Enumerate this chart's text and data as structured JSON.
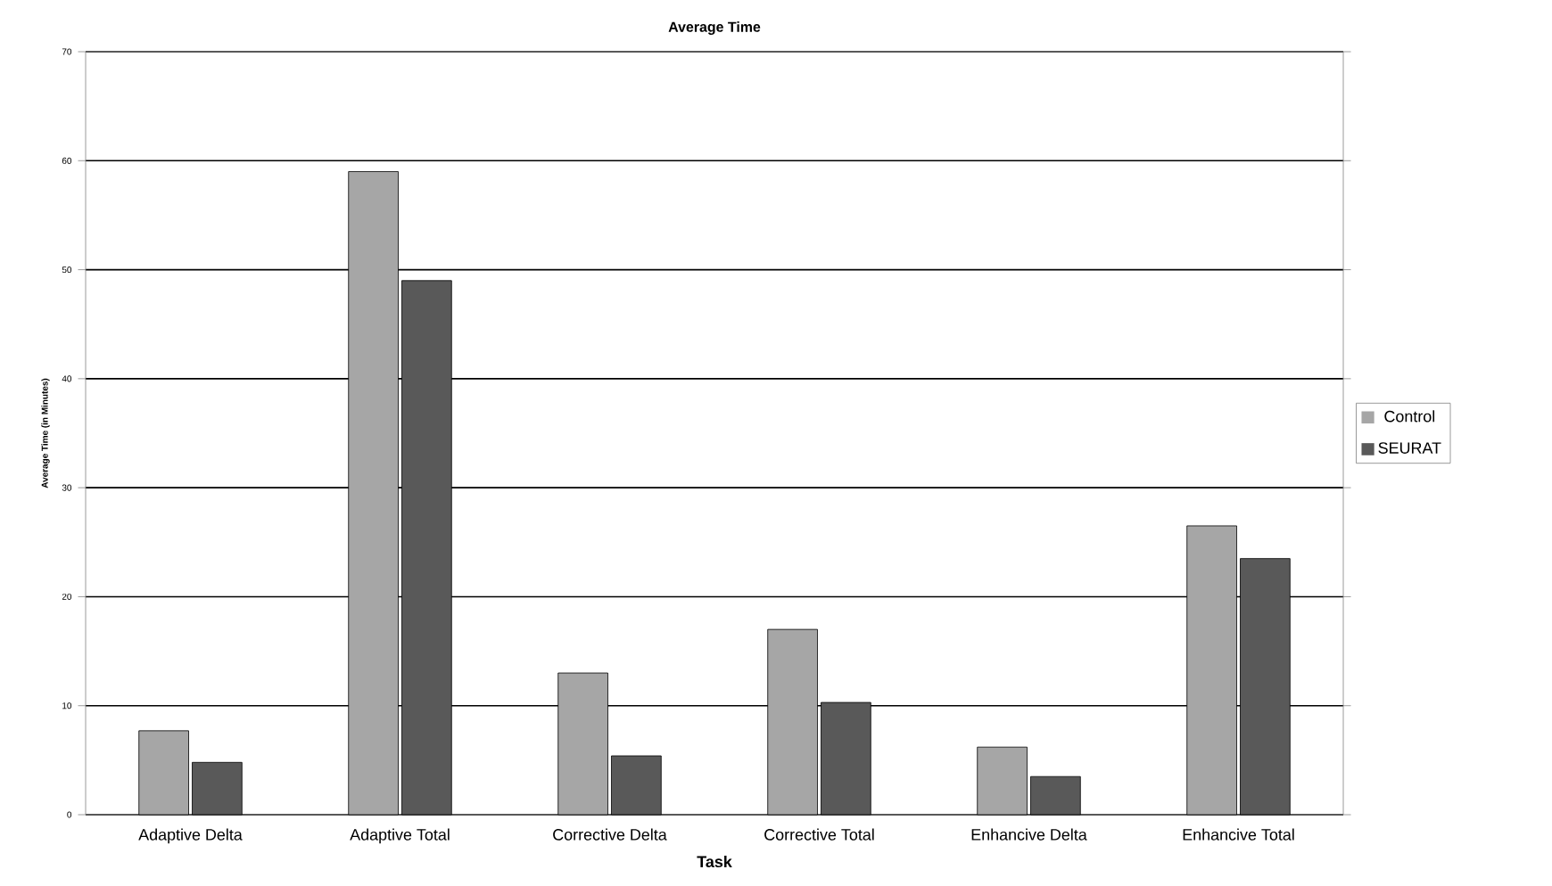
{
  "chart_data": {
    "type": "bar",
    "title": "Average Time",
    "xlabel": "Task",
    "ylabel": "Average Time (in Minutes)",
    "categories": [
      "Adaptive Delta",
      "Adaptive Total",
      "Corrective Delta",
      "Corrective Total",
      "Enhancive Delta",
      "Enhancive Total"
    ],
    "series": [
      {
        "name": "Control",
        "color": "#a6a6a6",
        "values": [
          7.7,
          59,
          13,
          17,
          6.2,
          26.5
        ]
      },
      {
        "name": "SEURAT",
        "color": "#595959",
        "values": [
          4.8,
          49,
          5.4,
          10.3,
          3.5,
          23.5
        ]
      }
    ],
    "ylim": [
      0,
      70
    ],
    "yticks": [
      0,
      10,
      20,
      30,
      40,
      50,
      60,
      70
    ],
    "grid": "y",
    "legend": "right"
  }
}
